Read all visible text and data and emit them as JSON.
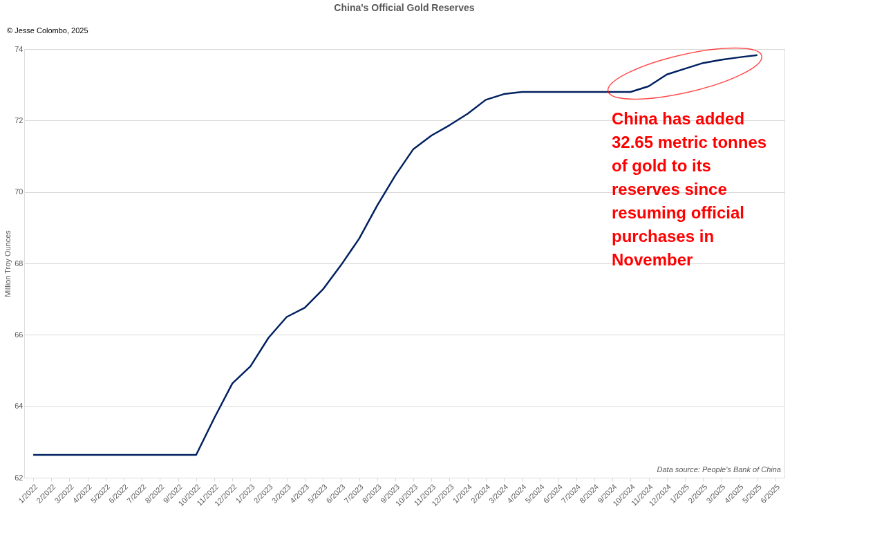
{
  "chart_data": {
    "type": "line",
    "title": "China's Official Gold Reserves",
    "ylabel": "Million Troy Ounces",
    "categories": [
      "1/2022",
      "2/2022",
      "3/2022",
      "4/2022",
      "5/2022",
      "6/2022",
      "7/2022",
      "8/2022",
      "9/2022",
      "10/2022",
      "11/2022",
      "12/2022",
      "1/2023",
      "2/2023",
      "3/2023",
      "4/2023",
      "5/2023",
      "6/2023",
      "7/2023",
      "8/2023",
      "9/2023",
      "10/2023",
      "11/2023",
      "12/2023",
      "1/2024",
      "2/2024",
      "3/2024",
      "4/2024",
      "5/2024",
      "6/2024",
      "7/2024",
      "8/2024",
      "9/2024",
      "10/2024",
      "11/2024",
      "12/2024",
      "1/2025",
      "2/2025",
      "3/2025",
      "4/2025",
      "5/2025",
      "6/2025"
    ],
    "series": [
      {
        "color": "#002060",
        "values": [
          62.64,
          62.64,
          62.64,
          62.64,
          62.64,
          62.64,
          62.64,
          62.64,
          62.64,
          62.64,
          63.67,
          64.64,
          65.12,
          65.92,
          66.5,
          66.76,
          67.27,
          67.95,
          68.69,
          69.62,
          70.46,
          71.2,
          71.58,
          71.87,
          72.19,
          72.58,
          72.74,
          72.8,
          72.8,
          72.8,
          72.8,
          72.8,
          72.8,
          72.8,
          72.96,
          73.29,
          73.45,
          73.61,
          73.7,
          73.77,
          73.83,
          null
        ]
      }
    ],
    "ylim": [
      62,
      74
    ],
    "yticks": [
      62,
      64,
      66,
      68,
      70,
      72,
      74
    ],
    "grid": "y",
    "annotations": [
      "© Jesse Colombo, 2025",
      "China has added 32.65 metric tonnes of gold to its reserves since resuming official purchases in November",
      "Data source: People's Bank of China"
    ]
  }
}
